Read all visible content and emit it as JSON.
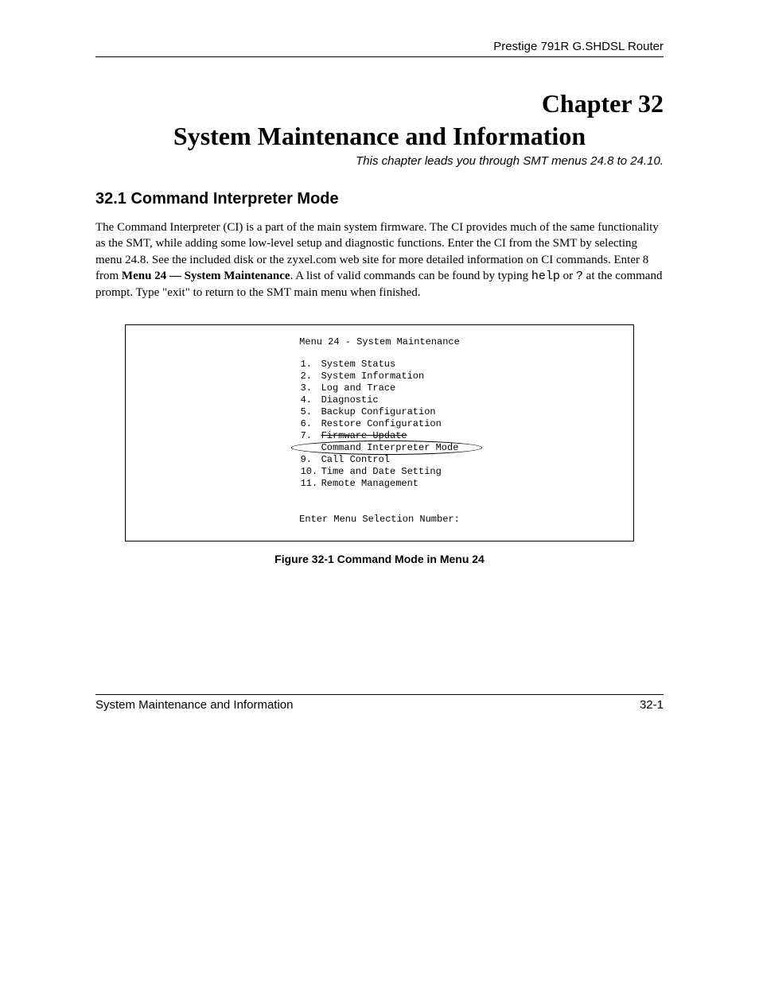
{
  "header": {
    "product": "Prestige 791R G.SHDSL Router"
  },
  "chapter": {
    "number_label": "Chapter 32",
    "title": "System Maintenance and Information",
    "desc": "This chapter leads you through SMT menus 24.8 to 24.10."
  },
  "section": {
    "heading": "32.1  Command Interpreter Mode",
    "para_pre": "The Command Interpreter (CI) is a part of the main system firmware. The CI provides much of the same functionality as the SMT, while adding some low-level setup and diagnostic functions. Enter the CI from the SMT by selecting menu 24.8. See the included disk or the zyxel.com web site for more detailed information on CI commands. Enter 8 from ",
    "para_bold": "Menu 24 — System Maintenance",
    "para_mid": ". A list of valid commands can be found by typing ",
    "para_mono1": "help",
    "para_mid2": " or ",
    "para_mono2": "?",
    "para_post": " at the command prompt. Type \"exit\" to return to the SMT main menu when finished."
  },
  "figure": {
    "menu_title": "Menu 24 - System Maintenance",
    "items": [
      {
        "num": "1.",
        "label": "System Status",
        "strike": false,
        "circled": false
      },
      {
        "num": "2.",
        "label": "System Information",
        "strike": false,
        "circled": false
      },
      {
        "num": "3.",
        "label": "Log and Trace",
        "strike": false,
        "circled": false
      },
      {
        "num": "4.",
        "label": "Diagnostic",
        "strike": false,
        "circled": false
      },
      {
        "num": "5.",
        "label": "Backup Configuration",
        "strike": false,
        "circled": false
      },
      {
        "num": "6.",
        "label": "Restore Configuration",
        "strike": false,
        "circled": false
      },
      {
        "num": "7.",
        "label": "Firmware Update",
        "strike": true,
        "circled": false
      },
      {
        "num": "",
        "label": "Command Interpreter Mode",
        "strike": false,
        "circled": true
      },
      {
        "num": "9.",
        "label": "Call Control",
        "strike": false,
        "circled": false
      },
      {
        "num": "10.",
        "label": "Time and Date Setting",
        "strike": false,
        "circled": false
      },
      {
        "num": "11.",
        "label": "Remote Management",
        "strike": false,
        "circled": false
      }
    ],
    "prompt": "Enter Menu Selection Number:",
    "caption": "Figure 32-1 Command Mode in Menu 24"
  },
  "footer": {
    "left": "System Maintenance and Information",
    "right": "32-1"
  }
}
